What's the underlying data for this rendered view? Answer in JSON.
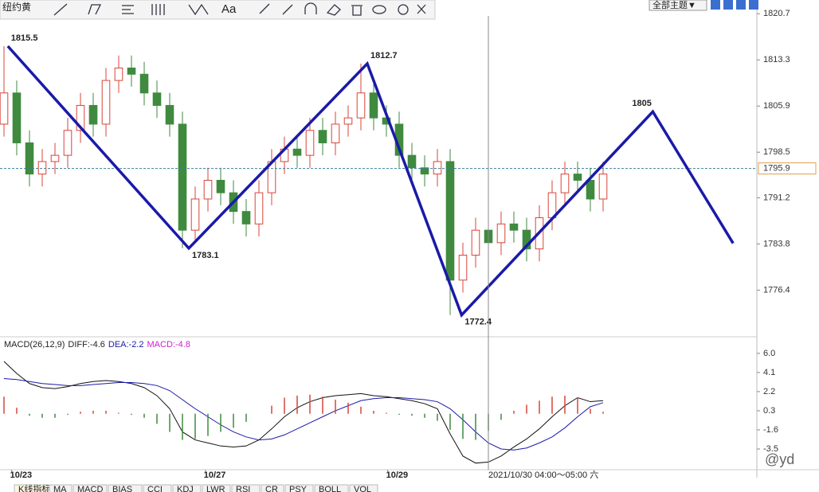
{
  "chart_data": [
    {
      "type": "candlestick",
      "open": [
        1803,
        1808,
        1800,
        1795,
        1797,
        1798,
        1802,
        1806,
        1803,
        1810,
        1812,
        1811,
        1808,
        1806,
        1803,
        1786,
        1791,
        1794,
        1792,
        1789,
        1787,
        1792,
        1797,
        1799,
        1798,
        1802,
        1800,
        1803,
        1804,
        1808,
        1804,
        1803,
        1798,
        1796,
        1795,
        1797,
        1778,
        1782,
        1786,
        1784,
        1787,
        1786,
        1783,
        1788,
        1792,
        1795,
        1794,
        1791
      ],
      "high": [
        1815.5,
        1810,
        1802,
        1799,
        1800,
        1804,
        1808,
        1808,
        1812,
        1814,
        1814,
        1813,
        1810,
        1808,
        1805,
        1793,
        1796,
        1796,
        1794,
        1791,
        1794,
        1799,
        1801,
        1801,
        1804,
        1804,
        1805,
        1806,
        1812.7,
        1810,
        1806,
        1805,
        1800,
        1798,
        1799,
        1799,
        1784,
        1788,
        1788,
        1789,
        1789,
        1788,
        1790,
        1794,
        1797,
        1797,
        1796,
        1797
      ],
      "low": [
        1801,
        1798,
        1793,
        1793,
        1795,
        1796,
        1800,
        1801,
        1801,
        1808,
        1809,
        1806,
        1804,
        1801,
        1783.1,
        1784,
        1789,
        1790,
        1787,
        1785,
        1785,
        1790,
        1795,
        1796,
        1796,
        1798,
        1798,
        1801,
        1802,
        1802,
        1801,
        1796,
        1794,
        1793,
        1793,
        1772.4,
        1776,
        1780,
        1782,
        1782,
        1784,
        1781,
        1781,
        1786,
        1790,
        1792,
        1789,
        1789
      ],
      "close": [
        1808,
        1800,
        1795,
        1797,
        1798,
        1802,
        1806,
        1803,
        1810,
        1812,
        1811,
        1808,
        1806,
        1803,
        1786,
        1791,
        1794,
        1792,
        1789,
        1787,
        1792,
        1797,
        1799,
        1798,
        1802,
        1800,
        1803,
        1804,
        1808,
        1804,
        1803,
        1798,
        1796,
        1795,
        1797,
        1778,
        1782,
        1786,
        1784,
        1787,
        1786,
        1783,
        1788,
        1792,
        1795,
        1794,
        1791,
        1795
      ],
      "up_color": "#d9443a",
      "down_color": "#3f8a3f",
      "ylim": [
        1769.3,
        1822.9
      ],
      "yticks": [
        1820.7,
        1813.3,
        1805.9,
        1798.5,
        1791.2,
        1783.8,
        1776.4
      ],
      "xlim": [
        0,
        63.75
      ],
      "xticks": [
        {
          "value": 0.6,
          "label": "10/23"
        },
        {
          "value": 15.8,
          "label": "10/27"
        },
        {
          "value": 30.1,
          "label": "10/29"
        }
      ],
      "last_price": 1795.9,
      "series": [
        {
          "type": "line",
          "color": "#1a1aa8",
          "x": [
            0.3,
            14.5,
            28.5,
            35.9,
            50.9,
            57.2
          ],
          "values": [
            1815.5,
            1783.1,
            1812.7,
            1772.4,
            1805,
            1783.9
          ],
          "value_labels": [
            "1815.5",
            "1783.1",
            "1812.7",
            "1772.4",
            "1805",
            null
          ]
        }
      ]
    },
    {
      "type": "macd",
      "title": "MACD(26,12,9)",
      "readouts": [
        {
          "label": "DIFF:-4.6",
          "color": "#222222"
        },
        {
          "label": "DEA:-2.2",
          "color": "#1a1aa8"
        },
        {
          "label": "MACD:-4.8",
          "color": "#d020d0"
        }
      ],
      "ylim": [
        -5.4,
        6.7
      ],
      "yticks": [
        {
          "value": 6.0,
          "label": "6.0"
        },
        4.1,
        2.2,
        0.3,
        -1.6,
        -3.5
      ],
      "series": [
        {
          "name": "DIFF",
          "color": "#111111",
          "values": [
            5.2,
            4,
            3,
            2.6,
            2.5,
            2.7,
            3,
            3.2,
            3.3,
            3.2,
            3,
            2.6,
            1.8,
            0.5,
            -1.8,
            -2.6,
            -2.9,
            -3.2,
            -3.3,
            -3.2,
            -2.6,
            -1.5,
            -0.3,
            0.6,
            1.2,
            1.6,
            1.8,
            1.9,
            2,
            1.8,
            1.7,
            1.5,
            1.3,
            1,
            0.5,
            -2,
            -4.2,
            -4.9,
            -4.8,
            -4.2,
            -3.3,
            -2.5,
            -1.5,
            -0.3,
            0.8,
            1.6,
            1.2,
            1.3
          ]
        },
        {
          "name": "DEA",
          "color": "#1a1aa8",
          "values": [
            3.5,
            3.4,
            3.2,
            3,
            2.9,
            2.8,
            2.8,
            2.9,
            3,
            3.1,
            3.1,
            3,
            2.8,
            2.3,
            1.4,
            0.5,
            -0.3,
            -1.1,
            -1.8,
            -2.3,
            -2.6,
            -2.5,
            -2.1,
            -1.5,
            -0.9,
            -0.3,
            0.3,
            0.8,
            1.3,
            1.5,
            1.6,
            1.6,
            1.5,
            1.4,
            1.2,
            0.5,
            -0.6,
            -1.8,
            -2.9,
            -3.5,
            -3.6,
            -3.4,
            -2.9,
            -2.3,
            -1.4,
            -0.3,
            0.7,
            1.1
          ]
        },
        {
          "name": "MACD",
          "type": "bar",
          "pos_color": "#d9443a",
          "neg_color": "#3f8a3f",
          "values": [
            1.7,
            0.6,
            -0.2,
            -0.4,
            -0.4,
            -0.1,
            0.2,
            0.3,
            0.3,
            0.1,
            -0.1,
            -0.4,
            -1,
            -1.8,
            -2.6,
            -2.5,
            -2.2,
            -1.8,
            -1.4,
            -0.8,
            0,
            0.8,
            1.6,
            1.8,
            1.9,
            1.7,
            1.4,
            1.1,
            0.7,
            0.3,
            0.1,
            -0.1,
            -0.2,
            -0.4,
            -0.7,
            -1.6,
            -2.5,
            -2.6,
            -1.7,
            -0.6,
            0.3,
            0.9,
            1.3,
            1.7,
            1.8,
            1.6,
            0.5,
            0.2
          ]
        }
      ]
    }
  ],
  "toolbar": {
    "symbol": "纽约黄",
    "font_tool": "Aa",
    "theme": "全部主题▼"
  },
  "crosshair": {
    "x": 38,
    "label": "2021/10/30 04:00～05:00 六"
  },
  "tabs": [
    "K线指标",
    "MA",
    "MACD",
    "BIAS",
    "CCI",
    "KDJ",
    "LWR",
    "RSI",
    "CR",
    "PSY",
    "BOLL",
    "VOL"
  ],
  "watermark": "@yd"
}
